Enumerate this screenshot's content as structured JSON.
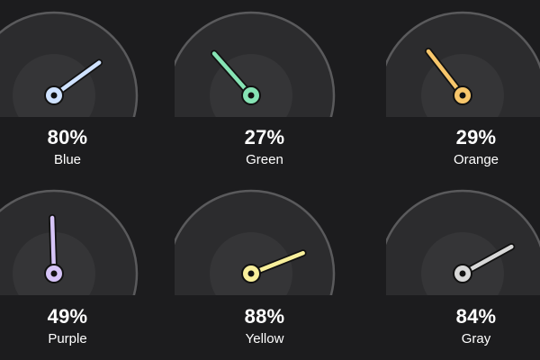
{
  "gauges": [
    {
      "label": "Blue",
      "value": 80,
      "percent_text": "80%",
      "color": "#cfe2ff"
    },
    {
      "label": "Green",
      "value": 27,
      "percent_text": "27%",
      "color": "#86e3b4"
    },
    {
      "label": "Orange",
      "value": 29,
      "percent_text": "29%",
      "color": "#f7c66b"
    },
    {
      "label": "Purple",
      "value": 49,
      "percent_text": "49%",
      "color": "#d6c4f7"
    },
    {
      "label": "Yellow",
      "value": 88,
      "percent_text": "88%",
      "color": "#f8ef9b"
    },
    {
      "label": "Gray",
      "value": 84,
      "percent_text": "84%",
      "color": "#d8d8d8"
    }
  ],
  "theme": {
    "background": "#1c1c1e",
    "dial_fill": "#2c2c2e",
    "dial_inner": "#353537",
    "dial_rim": "#5a5a5c",
    "hub_outline": "#111111"
  }
}
